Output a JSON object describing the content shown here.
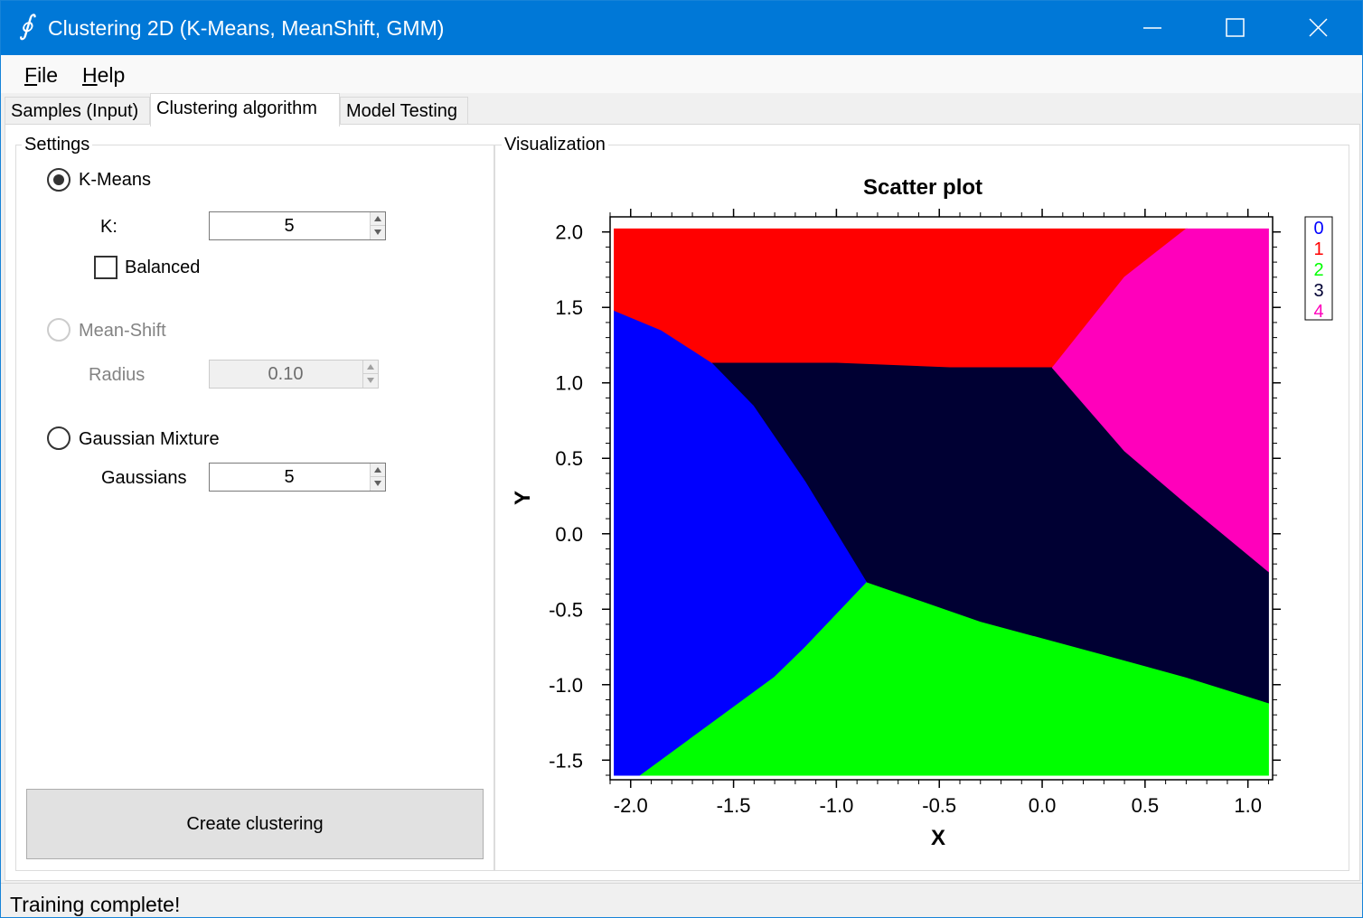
{
  "window": {
    "title": "Clustering 2D (K-Means, MeanShift, GMM)",
    "icon": "integral-icon"
  },
  "menu": [
    {
      "label_u": "F",
      "label_rest": "ile"
    },
    {
      "label_u": "H",
      "label_rest": "elp"
    }
  ],
  "tabs": [
    {
      "label": "Samples (Input)",
      "active": false
    },
    {
      "label": "Clustering algorithm",
      "active": true
    },
    {
      "label": "Model Testing",
      "active": false
    }
  ],
  "settings": {
    "group_label": "Settings",
    "kmeans": {
      "label": "K-Means",
      "checked": true,
      "k_label": "K:",
      "k_value": "5",
      "balanced_label": "Balanced",
      "balanced_checked": false
    },
    "meanshift": {
      "label": "Mean-Shift",
      "enabled": false,
      "radius_label": "Radius",
      "radius_value": "0.10"
    },
    "gmm": {
      "label": "Gaussian Mixture",
      "checked": false,
      "gaussians_label": "Gaussians",
      "gaussians_value": "5"
    },
    "create_button": "Create clustering"
  },
  "visualization": {
    "group_label": "Visualization"
  },
  "chart_data": {
    "type": "scatter",
    "title": "Scatter plot",
    "xlabel": "X",
    "ylabel": "Y",
    "xlim": [
      -2.1,
      1.12
    ],
    "ylim": [
      -1.63,
      2.1
    ],
    "xticks": [
      "-2.0",
      "-1.5",
      "-1.0",
      "-0.5",
      "0.0",
      "0.5",
      "1.0"
    ],
    "xtick_values": [
      -2.0,
      -1.5,
      -1.0,
      -0.5,
      0.0,
      0.5,
      1.0
    ],
    "yticks": [
      "2.0",
      "1.5",
      "1.0",
      "0.5",
      "0.0",
      "-0.5",
      "-1.0",
      "-1.5"
    ],
    "ytick_values": [
      2.0,
      1.5,
      1.0,
      0.5,
      0.0,
      -0.5,
      -1.0,
      -1.5
    ],
    "legend": [
      {
        "name": "0",
        "color": "#0000ff"
      },
      {
        "name": "1",
        "color": "#ff0000"
      },
      {
        "name": "2",
        "color": "#00ff00"
      },
      {
        "name": "3",
        "color": "#000033"
      },
      {
        "name": "4",
        "color": "#ff00bb"
      }
    ],
    "legend_position": "top-right",
    "regions": [
      {
        "cluster": "0",
        "color": "#0000ff",
        "polygon": [
          [
            -2.08,
            1.48
          ],
          [
            -1.85,
            1.35
          ],
          [
            -1.6,
            1.13
          ],
          [
            -1.4,
            0.85
          ],
          [
            -1.15,
            0.35
          ],
          [
            -0.85,
            -0.32
          ],
          [
            -1.15,
            -0.75
          ],
          [
            -1.3,
            -0.95
          ],
          [
            -1.6,
            -1.25
          ],
          [
            -1.95,
            -1.6
          ],
          [
            -2.08,
            -1.6
          ]
        ]
      },
      {
        "cluster": "1",
        "color": "#ff0000",
        "polygon": [
          [
            -2.08,
            2.02
          ],
          [
            0.7,
            2.02
          ],
          [
            0.4,
            1.7
          ],
          [
            0.05,
            1.1
          ],
          [
            -0.45,
            1.1
          ],
          [
            -1.0,
            1.13
          ],
          [
            -1.6,
            1.13
          ],
          [
            -1.85,
            1.35
          ],
          [
            -2.08,
            1.48
          ]
        ]
      },
      {
        "cluster": "2",
        "color": "#00ff00",
        "polygon": [
          [
            -1.95,
            -1.6
          ],
          [
            1.1,
            -1.6
          ],
          [
            1.1,
            -1.12
          ],
          [
            0.7,
            -0.95
          ],
          [
            0.3,
            -0.8
          ],
          [
            -0.3,
            -0.58
          ],
          [
            -0.85,
            -0.32
          ],
          [
            -1.15,
            -0.75
          ],
          [
            -1.3,
            -0.95
          ],
          [
            -1.6,
            -1.25
          ]
        ]
      },
      {
        "cluster": "3",
        "color": "#000033",
        "polygon": [
          [
            -1.6,
            1.13
          ],
          [
            -1.0,
            1.13
          ],
          [
            -0.45,
            1.1
          ],
          [
            0.05,
            1.1
          ],
          [
            0.4,
            0.55
          ],
          [
            0.7,
            0.2
          ],
          [
            1.1,
            -0.25
          ],
          [
            1.1,
            -1.12
          ],
          [
            0.7,
            -0.95
          ],
          [
            0.3,
            -0.8
          ],
          [
            -0.3,
            -0.58
          ],
          [
            -0.85,
            -0.32
          ],
          [
            -1.15,
            0.35
          ],
          [
            -1.4,
            0.85
          ]
        ]
      },
      {
        "cluster": "4",
        "color": "#ff00bb",
        "polygon": [
          [
            0.7,
            2.02
          ],
          [
            1.1,
            2.02
          ],
          [
            1.1,
            -0.25
          ],
          [
            0.7,
            0.2
          ],
          [
            0.4,
            0.55
          ],
          [
            0.05,
            1.1
          ],
          [
            0.4,
            1.7
          ]
        ]
      }
    ]
  },
  "status": {
    "text": "Training complete!"
  }
}
